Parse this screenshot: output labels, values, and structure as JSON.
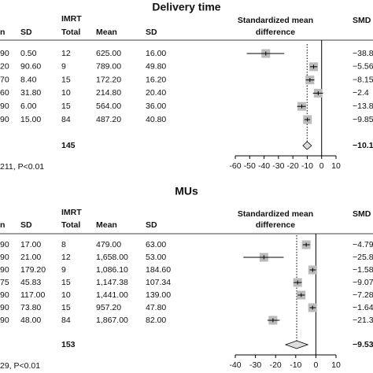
{
  "chart_data": [
    {
      "type": "forest",
      "title": "Delivery time",
      "group": "IMRT",
      "columns": [
        "n",
        "SD",
        "Total",
        "Mean",
        "SD"
      ],
      "plot_header": [
        "Standardized mean",
        "difference"
      ],
      "smd_header": "SMD",
      "rows": [
        [
          "90",
          "0.50",
          "12",
          "625.00",
          "16.00"
        ],
        [
          "20",
          "90.60",
          "9",
          "789.00",
          "49.80"
        ],
        [
          "70",
          "8.40",
          "15",
          "172.20",
          "16.20"
        ],
        [
          "60",
          "31.80",
          "10",
          "214.80",
          "20.40"
        ],
        [
          "90",
          "6.00",
          "15",
          "564.00",
          "36.00"
        ],
        [
          "90",
          "15.00",
          "84",
          "487.20",
          "40.80"
        ]
      ],
      "values": [
        -38.8,
        -5.56,
        -8.15,
        -2.4,
        -13.8,
        -9.85
      ],
      "value_labels": [
        "−38.8",
        "−5.56",
        "−8.15",
        "−2.4",
        "−13.8",
        "−9.85"
      ],
      "lower": [
        -52,
        -8,
        -11,
        -6,
        -17,
        -12
      ],
      "upper": [
        -26,
        -3,
        -5,
        1,
        -11,
        -8
      ],
      "total": "145",
      "summary": -10.1,
      "summary_label": "−10.1",
      "summary_lower": -13,
      "summary_upper": -7,
      "footer": "211, P<0.01",
      "xlim": [
        -60,
        10
      ],
      "xticks": [
        -60,
        -50,
        -40,
        -30,
        -20,
        -10,
        0,
        10
      ],
      "color": "#bbbbbb"
    },
    {
      "type": "forest",
      "title": "MUs",
      "group": "IMRT",
      "columns": [
        "n",
        "SD",
        "Total",
        "Mean",
        "SD"
      ],
      "plot_header": [
        "Standardized mean",
        "difference"
      ],
      "smd_header": "SMD",
      "rows": [
        [
          "90",
          "17.00",
          "8",
          "479.00",
          "63.00"
        ],
        [
          "90",
          "21.00",
          "12",
          "1,658.00",
          "53.00"
        ],
        [
          "90",
          "179.20",
          "9",
          "1,086.10",
          "184.60"
        ],
        [
          "75",
          "45.83",
          "15",
          "1,147.38",
          "107.34"
        ],
        [
          "90",
          "117.00",
          "10",
          "1,441.00",
          "139.00"
        ],
        [
          "90",
          "73.80",
          "15",
          "957.20",
          "47.80"
        ],
        [
          "90",
          "48.00",
          "84",
          "1,867.00",
          "82.00"
        ]
      ],
      "values": [
        -4.79,
        -25.8,
        -1.58,
        -9.07,
        -7.28,
        -1.64,
        -21.3
      ],
      "value_labels": [
        "−4.79",
        "−25.8",
        "−1.58",
        "−9.07",
        "−7.28",
        "−1.64",
        "−21.3"
      ],
      "lower": [
        -6.5,
        -36,
        -3,
        -11,
        -9,
        -3,
        -24
      ],
      "upper": [
        -3,
        -16,
        0,
        -7,
        -5.5,
        0,
        -18
      ],
      "total": "153",
      "summary": -9.53,
      "summary_label": "−9.53",
      "summary_lower": -15,
      "summary_upper": -4,
      "footer": "29, P<0.01",
      "xlim": [
        -40,
        10
      ],
      "xticks": [
        -40,
        -30,
        -20,
        -10,
        0,
        10
      ],
      "color": "#bbbbbb"
    }
  ]
}
